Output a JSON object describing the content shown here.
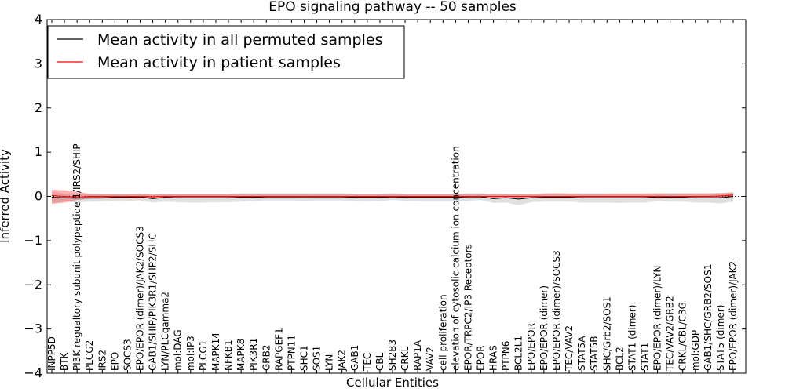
{
  "chart_data": {
    "type": "line",
    "title": "EPO signaling pathway -- 50 samples",
    "xlabel": "Cellular Entities",
    "ylabel": "Inferred Activity",
    "ylim": [
      -4,
      4
    ],
    "yticks": [
      -4,
      -3,
      -2,
      -1,
      0,
      1,
      2,
      3,
      4
    ],
    "ytick_labels": [
      "−4",
      "−3",
      "−2",
      "−1",
      "0",
      "1",
      "2",
      "3",
      "4"
    ],
    "legend_position": "top-left",
    "categories": [
      "INPP5D",
      "BTK",
      "PI3K regualtory subunit polypeptide 1/IRS2/SHIP",
      "PLCG2",
      "IRS2",
      "EPO",
      "SOCS3",
      "EPO/EPOR (dimer)/JAK2/SOCS3",
      "GAB1/SHIP/PIK3R1/SHP2/SHC",
      "LYN/PLCgamma2",
      "mol:DAG",
      "mol:IP3",
      "PLCG1",
      "MAPK14",
      "NFKB1",
      "MAPK8",
      "PIK3R1",
      "GRB2",
      "RAPGEF1",
      "PTPN11",
      "SHC1",
      "SOS1",
      "LYN",
      "JAK2",
      "GAB1",
      "TEC",
      "CBL",
      "SH2B3",
      "CRKL",
      "RAP1A",
      "VAV2",
      "cell proliferation",
      "elevation of cytosolic calcium ion concentration",
      "EPOR/TRPC2/IP3 Receptors",
      "EPOR",
      "HRAS",
      "PTPN6",
      "BCL2L1",
      "EPO/EPOR",
      "EPO/EPOR (dimer)",
      "EPO/EPOR (dimer)/SOCS3",
      "TEC/VAV2",
      "STAT5A",
      "STAT5B",
      "SHC/Grb2/SOS1",
      "BCL2",
      "STAT1 (dimer)",
      "STAT1",
      "EPO/EPOR (dimer)/LYN",
      "TEC/VAV2/GRB2",
      "CRKL/CBL/C3G",
      "mol:GDP",
      "GAB1/SHC/GRB2/SOS1",
      "STAT5 (dimer)",
      "EPO/EPOR (dimer)/JAK2"
    ],
    "series": [
      {
        "name": "Mean activity in all permuted samples",
        "color": "#000000",
        "values": [
          -0.02,
          -0.03,
          -0.04,
          -0.03,
          -0.03,
          -0.02,
          -0.02,
          -0.01,
          -0.05,
          -0.02,
          -0.03,
          -0.03,
          -0.03,
          -0.03,
          -0.03,
          -0.02,
          -0.02,
          -0.01,
          -0.01,
          -0.01,
          -0.01,
          -0.01,
          -0.01,
          -0.01,
          -0.02,
          -0.02,
          -0.02,
          -0.01,
          -0.02,
          -0.02,
          -0.02,
          -0.02,
          -0.02,
          -0.01,
          -0.01,
          -0.05,
          -0.03,
          -0.06,
          -0.03,
          -0.02,
          -0.02,
          -0.02,
          -0.03,
          -0.03,
          -0.03,
          -0.03,
          -0.03,
          -0.03,
          -0.01,
          -0.02,
          -0.02,
          -0.03,
          -0.03,
          -0.03,
          0.0
        ],
        "band_low": [
          -0.15,
          -0.12,
          -0.14,
          -0.12,
          -0.12,
          -0.1,
          -0.1,
          -0.09,
          -0.14,
          -0.12,
          -0.13,
          -0.14,
          -0.14,
          -0.13,
          -0.13,
          -0.12,
          -0.1,
          -0.09,
          -0.09,
          -0.09,
          -0.1,
          -0.09,
          -0.09,
          -0.09,
          -0.1,
          -0.1,
          -0.11,
          -0.08,
          -0.1,
          -0.11,
          -0.11,
          -0.11,
          -0.11,
          -0.1,
          -0.08,
          -0.15,
          -0.14,
          -0.2,
          -0.13,
          -0.12,
          -0.12,
          -0.12,
          -0.14,
          -0.14,
          -0.14,
          -0.15,
          -0.14,
          -0.14,
          -0.11,
          -0.12,
          -0.12,
          -0.14,
          -0.14,
          -0.16,
          -0.12
        ],
        "band_high": [
          0.1,
          0.06,
          0.06,
          0.06,
          0.06,
          0.06,
          0.06,
          0.06,
          0.04,
          0.06,
          0.06,
          0.06,
          0.06,
          0.06,
          0.06,
          0.07,
          0.07,
          0.07,
          0.07,
          0.07,
          0.07,
          0.07,
          0.07,
          0.07,
          0.06,
          0.06,
          0.06,
          0.07,
          0.06,
          0.06,
          0.06,
          0.06,
          0.06,
          0.07,
          0.07,
          0.05,
          0.06,
          0.06,
          0.06,
          0.07,
          0.07,
          0.07,
          0.07,
          0.07,
          0.07,
          0.07,
          0.07,
          0.07,
          0.08,
          0.08,
          0.08,
          0.08,
          0.08,
          0.08,
          0.1
        ]
      },
      {
        "name": "Mean activity in patient samples",
        "color": "#ff0000",
        "values": [
          0.02,
          0.0,
          -0.02,
          0.0,
          0.0,
          0.0,
          0.0,
          0.0,
          -0.01,
          0.0,
          0.0,
          0.0,
          0.0,
          0.0,
          0.0,
          0.0,
          0.0,
          0.0,
          0.0,
          0.0,
          0.0,
          0.0,
          0.0,
          0.0,
          0.0,
          0.0,
          0.0,
          0.0,
          0.0,
          0.0,
          0.0,
          0.0,
          0.0,
          0.0,
          0.0,
          0.0,
          0.0,
          0.0,
          0.0,
          0.0,
          0.0,
          0.0,
          0.0,
          0.0,
          0.0,
          0.0,
          0.0,
          0.0,
          0.0,
          0.0,
          0.0,
          0.0,
          0.0,
          0.01,
          0.03
        ],
        "band_low": [
          -0.17,
          -0.14,
          -0.08,
          -0.06,
          -0.05,
          -0.04,
          -0.04,
          -0.04,
          -0.05,
          -0.04,
          -0.03,
          -0.03,
          -0.03,
          -0.03,
          -0.03,
          -0.03,
          -0.02,
          -0.02,
          -0.02,
          -0.02,
          -0.02,
          -0.02,
          -0.02,
          -0.02,
          -0.02,
          -0.02,
          -0.02,
          -0.02,
          -0.02,
          -0.02,
          -0.02,
          -0.02,
          -0.02,
          -0.02,
          -0.02,
          -0.03,
          -0.03,
          -0.03,
          -0.03,
          -0.03,
          -0.03,
          -0.03,
          -0.03,
          -0.03,
          -0.03,
          -0.03,
          -0.03,
          -0.03,
          -0.03,
          -0.03,
          -0.03,
          -0.03,
          -0.03,
          -0.03,
          -0.02
        ],
        "band_high": [
          0.15,
          0.14,
          0.1,
          0.06,
          0.05,
          0.05,
          0.05,
          0.05,
          0.04,
          0.05,
          0.05,
          0.05,
          0.05,
          0.05,
          0.05,
          0.05,
          0.05,
          0.05,
          0.05,
          0.05,
          0.05,
          0.05,
          0.05,
          0.05,
          0.05,
          0.05,
          0.05,
          0.05,
          0.05,
          0.05,
          0.05,
          0.05,
          0.05,
          0.05,
          0.05,
          0.05,
          0.05,
          0.05,
          0.05,
          0.06,
          0.07,
          0.06,
          0.05,
          0.05,
          0.05,
          0.06,
          0.06,
          0.06,
          0.06,
          0.06,
          0.06,
          0.06,
          0.06,
          0.07,
          0.08
        ]
      }
    ],
    "reference_line": {
      "y": 0,
      "style": "dotted"
    }
  }
}
